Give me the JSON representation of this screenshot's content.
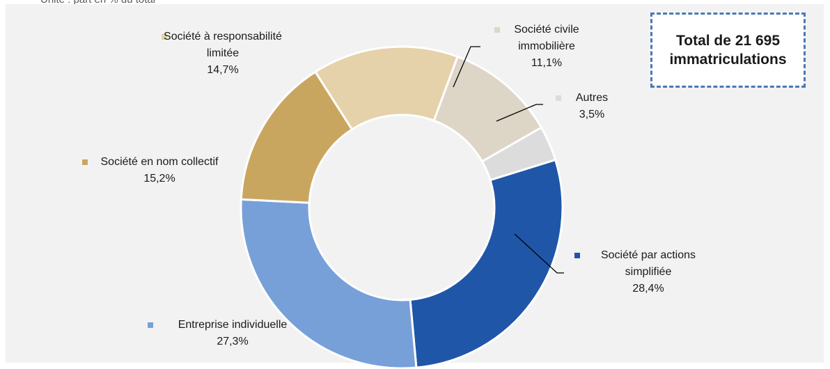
{
  "unit_note": "Unité : part en % du total",
  "total_box": {
    "line1": "Total de 21 695",
    "line2": "immatriculations"
  },
  "chart_data": {
    "type": "pie",
    "donut": true,
    "legend": "inline labels with leader lines",
    "slices": [
      {
        "label_lines": [
          "Société par actions",
          "simplifiée"
        ],
        "value": 28.4,
        "value_label": "28,4%",
        "color": "#1f56a8"
      },
      {
        "label_lines": [
          "Entreprise individuelle"
        ],
        "value": 27.3,
        "value_label": "27,3%",
        "color": "#77a0d9"
      },
      {
        "label_lines": [
          "Société en nom collectif"
        ],
        "value": 15.2,
        "value_label": "15,2%",
        "color": "#c9a660"
      },
      {
        "label_lines": [
          "Société à responsabilité",
          "limitée"
        ],
        "value": 14.7,
        "value_label": "14,7%",
        "color": "#e5d2aa"
      },
      {
        "label_lines": [
          "Société civile",
          "immobilière"
        ],
        "value": 11.1,
        "value_label": "11,1%",
        "color": "#ddd5c6"
      },
      {
        "label_lines": [
          "Autres"
        ],
        "value": 3.5,
        "value_label": "3,5%",
        "color": "#dcdcdc"
      }
    ]
  }
}
